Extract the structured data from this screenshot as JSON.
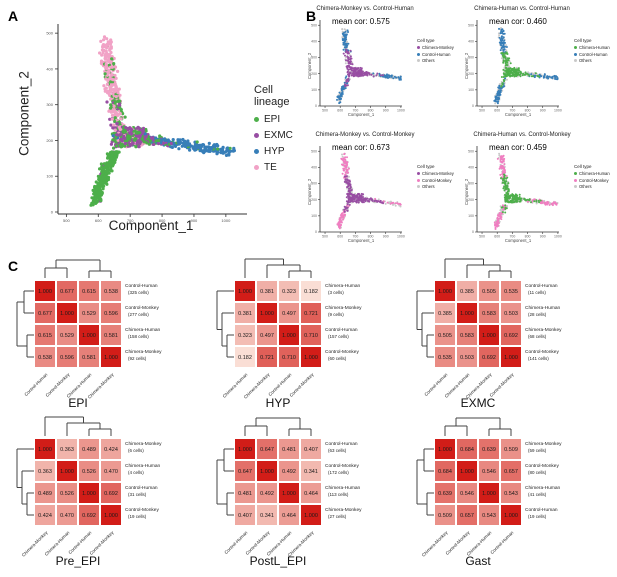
{
  "figure": {
    "panel_a_label": "A",
    "panel_b_label": "B",
    "panel_c_label": "C",
    "background": "#ffffff"
  },
  "colors": {
    "epi_green": "#4daf4a",
    "exmc_purple": "#984ea3",
    "hyp_blue": "#377eb8",
    "te_pink": "#f1a2c6",
    "control_monkey_pink": "#f07ec1",
    "others_gray": "#c9c9c9",
    "heat_low": "#fdede3",
    "heat_high": "#d21d18",
    "axis": "#333333"
  },
  "chart_data": [
    {
      "id": "panel-a",
      "type": "scatter",
      "xlabel": "Component_1",
      "ylabel": "Component_2",
      "xlim": [
        480,
        1060
      ],
      "ylim": [
        0,
        520
      ],
      "x_ticks": [
        500,
        600,
        700,
        800,
        900,
        1000
      ],
      "y_ticks": [
        0,
        100,
        200,
        300,
        400,
        500
      ],
      "legend_title": "Cell lineage",
      "series": [
        {
          "name": "EPI",
          "color": "#4daf4a"
        },
        {
          "name": "EXMC",
          "color": "#984ea3"
        },
        {
          "name": "HYP",
          "color": "#377eb8"
        },
        {
          "name": "TE",
          "color": "#f1a2c6"
        }
      ]
    },
    {
      "id": "panel-b-1",
      "type": "scatter",
      "title": "Chimera-Monkey vs. Control-Human",
      "mean_cor": 0.575,
      "annotation": "mean cor: 0.575",
      "legend_title": "Cell type",
      "xlabel": "Component_1",
      "ylabel": "Component_2",
      "x_ticks": [
        500,
        600,
        700,
        800,
        900,
        1000
      ],
      "y_ticks": [
        0,
        100,
        200,
        300,
        400,
        500
      ],
      "series": [
        {
          "name": "Chimera-Monkey",
          "color": "#984ea3",
          "role": "chimera"
        },
        {
          "name": "Control-Human",
          "color": "#377eb8",
          "role": "control"
        },
        {
          "name": "Others",
          "color": "#c9c9c9",
          "role": "others"
        }
      ]
    },
    {
      "id": "panel-b-2",
      "type": "scatter",
      "title": "Chimera-Human vs. Control-Human",
      "mean_cor": 0.46,
      "annotation": "mean cor: 0.460",
      "legend_title": "Cell type",
      "xlabel": "Component_1",
      "ylabel": "Component_2",
      "x_ticks": [
        500,
        600,
        700,
        800,
        900,
        1000
      ],
      "y_ticks": [
        0,
        100,
        200,
        300,
        400,
        500
      ],
      "series": [
        {
          "name": "Chimera-Human",
          "color": "#4daf4a",
          "role": "chimera"
        },
        {
          "name": "Control-Human",
          "color": "#377eb8",
          "role": "control"
        },
        {
          "name": "Others",
          "color": "#c9c9c9",
          "role": "others"
        }
      ]
    },
    {
      "id": "panel-b-3",
      "type": "scatter",
      "title": "Chimera-Monkey vs. Control-Monkey",
      "mean_cor": 0.673,
      "annotation": "mean cor: 0.673",
      "legend_title": "Cell type",
      "xlabel": "Component_1",
      "ylabel": "Component_2",
      "x_ticks": [
        500,
        600,
        700,
        800,
        900,
        1000
      ],
      "y_ticks": [
        0,
        100,
        200,
        300,
        400,
        500
      ],
      "series": [
        {
          "name": "Chimera-Monkey",
          "color": "#984ea3",
          "role": "chimera"
        },
        {
          "name": "Control-Monkey",
          "color": "#f07ec1",
          "role": "control"
        },
        {
          "name": "Others",
          "color": "#c9c9c9",
          "role": "others"
        }
      ]
    },
    {
      "id": "panel-b-4",
      "type": "scatter",
      "title": "Chimera-Human vs. Control-Monkey",
      "mean_cor": 0.459,
      "annotation": "mean cor: 0.459",
      "legend_title": "Cell type",
      "xlabel": "Component_1",
      "ylabel": "Component_2",
      "x_ticks": [
        500,
        600,
        700,
        800,
        900,
        1000
      ],
      "y_ticks": [
        0,
        100,
        200,
        300,
        400,
        500
      ],
      "series": [
        {
          "name": "Chimera-Human",
          "color": "#4daf4a",
          "role": "chimera"
        },
        {
          "name": "Control-Monkey",
          "color": "#f07ec1",
          "role": "control"
        },
        {
          "name": "Others",
          "color": "#c9c9c9",
          "role": "others"
        }
      ]
    },
    {
      "id": "heatmap-epi",
      "type": "heatmap",
      "title": "EPI",
      "dendrogram": "balanced",
      "labels": [
        "Control-Human",
        "Control-Monkey",
        "Chimera-Human",
        "Chimera-Monkey"
      ],
      "cell_counts": [
        "(325 cells)",
        "(277 cells)",
        "(158 cells)",
        "(92 cells)"
      ],
      "matrix": [
        [
          1.0,
          0.677,
          0.615,
          0.538
        ],
        [
          0.677,
          1.0,
          0.529,
          0.596
        ],
        [
          0.615,
          0.529,
          1.0,
          0.581
        ],
        [
          0.538,
          0.596,
          0.581,
          1.0
        ]
      ]
    },
    {
      "id": "heatmap-hyp",
      "type": "heatmap",
      "title": "HYP",
      "dendrogram": "nested",
      "labels": [
        "Chimera-Human",
        "Chimera-Monkey",
        "Control-Human",
        "Control-Monkey"
      ],
      "cell_counts": [
        "(3 cells)",
        "(9 cells)",
        "(157 cells)",
        "(60 cells)"
      ],
      "matrix": [
        [
          1.0,
          0.381,
          0.323,
          0.182
        ],
        [
          0.381,
          1.0,
          0.497,
          0.721
        ],
        [
          0.323,
          0.497,
          1.0,
          0.71
        ],
        [
          0.182,
          0.721,
          0.71,
          1.0
        ]
      ]
    },
    {
      "id": "heatmap-exmc",
      "type": "heatmap",
      "title": "EXMC",
      "dendrogram": "nested",
      "labels": [
        "Control-Human",
        "Chimera-Human",
        "Chimera-Monkey",
        "Control-Monkey"
      ],
      "cell_counts": [
        "(11 cells)",
        "(28 cells)",
        "(68 cells)",
        "(141 cells)"
      ],
      "matrix": [
        [
          1.0,
          0.385,
          0.505,
          0.535
        ],
        [
          0.385,
          1.0,
          0.583,
          0.503
        ],
        [
          0.505,
          0.583,
          1.0,
          0.692
        ],
        [
          0.535,
          0.503,
          0.692,
          1.0
        ]
      ]
    },
    {
      "id": "heatmap-pre-epi",
      "type": "heatmap",
      "title": "Pre_EPI",
      "dendrogram": "nested",
      "labels": [
        "Chimera-Monkey",
        "Chimera-Human",
        "Control-Human",
        "Control-Monkey"
      ],
      "cell_counts": [
        "(6 cells)",
        "(4 cells)",
        "(31 cells)",
        "(19 cells)"
      ],
      "matrix": [
        [
          1.0,
          0.363,
          0.489,
          0.424
        ],
        [
          0.363,
          1.0,
          0.526,
          0.47
        ],
        [
          0.489,
          0.526,
          1.0,
          0.692
        ],
        [
          0.424,
          0.47,
          0.692,
          1.0
        ]
      ]
    },
    {
      "id": "heatmap-postl-epi",
      "type": "heatmap",
      "title": "PostL_EPI",
      "dendrogram": "balanced",
      "labels": [
        "Control-Human",
        "Control-Monkey",
        "Chimera-Human",
        "Chimera-Monkey"
      ],
      "cell_counts": [
        "(63 cells)",
        "(172 cells)",
        "(113 cells)",
        "(27 cells)"
      ],
      "matrix": [
        [
          1.0,
          0.647,
          0.481,
          0.407
        ],
        [
          0.647,
          1.0,
          0.492,
          0.341
        ],
        [
          0.481,
          0.492,
          1.0,
          0.464
        ],
        [
          0.407,
          0.341,
          0.464,
          1.0
        ]
      ]
    },
    {
      "id": "heatmap-gast",
      "type": "heatmap",
      "title": "Gast",
      "dendrogram": "balanced",
      "labels": [
        "Chimera-Monkey",
        "Control-Monkey",
        "Chimera-Human",
        "Control-Human"
      ],
      "cell_counts": [
        "(59 cells)",
        "(80 cells)",
        "(41 cells)",
        "(19 cells)"
      ],
      "matrix": [
        [
          1.0,
          0.684,
          0.639,
          0.509
        ],
        [
          0.684,
          1.0,
          0.546,
          0.657
        ],
        [
          0.639,
          0.546,
          1.0,
          0.543
        ],
        [
          0.509,
          0.657,
          0.543,
          1.0
        ]
      ]
    }
  ]
}
